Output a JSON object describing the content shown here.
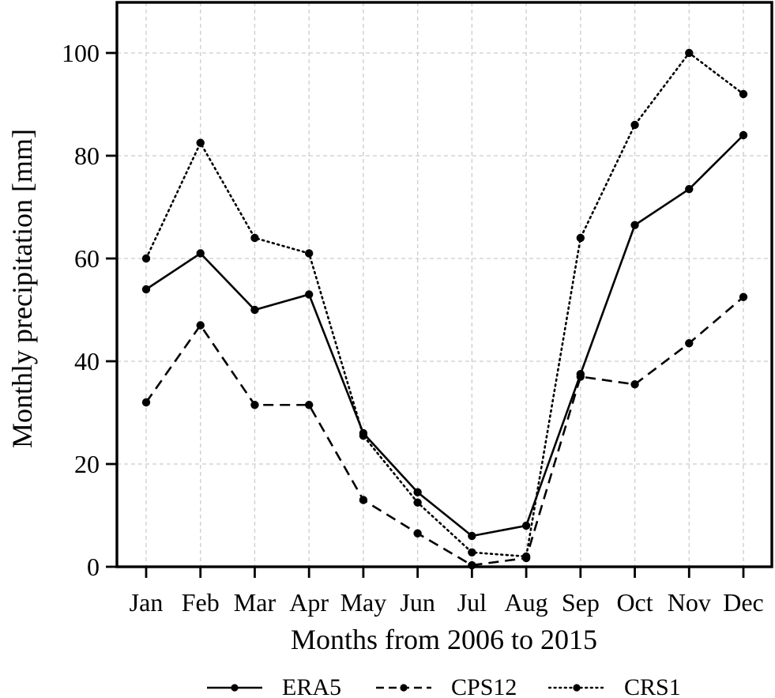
{
  "chart_data": {
    "type": "line",
    "title": "",
    "xlabel": "Months from 2006 to 2015",
    "ylabel": "Monthly precipitation [mm]",
    "categories": [
      "Jan",
      "Feb",
      "Mar",
      "Apr",
      "May",
      "Jun",
      "Jul",
      "Aug",
      "Sep",
      "Oct",
      "Nov",
      "Dec"
    ],
    "series": [
      {
        "name": "ERA5",
        "style": "solid",
        "color": "#000000",
        "marker": "circle",
        "values": [
          54,
          61,
          50,
          53,
          26,
          14.5,
          6,
          8,
          37.5,
          66.5,
          73.5,
          84
        ]
      },
      {
        "name": "CPS12",
        "style": "dashed",
        "color": "#000000",
        "marker": "circle",
        "values": [
          32,
          47,
          31.5,
          31.5,
          13,
          6.5,
          0.3,
          1.7,
          37,
          35.5,
          43.5,
          52.5
        ]
      },
      {
        "name": "CRS1",
        "style": "dotted",
        "color": "#000000",
        "marker": "circle",
        "values": [
          60,
          82.5,
          64,
          61,
          25.5,
          12.5,
          2.8,
          2,
          64,
          86,
          100,
          92
        ]
      }
    ],
    "ylim": [
      0,
      110
    ],
    "yticks": [
      0,
      20,
      40,
      60,
      80,
      100
    ],
    "grid": true,
    "grid_color": "#cccccc",
    "axis_color": "#000000",
    "legend_position": "bottom-center"
  }
}
